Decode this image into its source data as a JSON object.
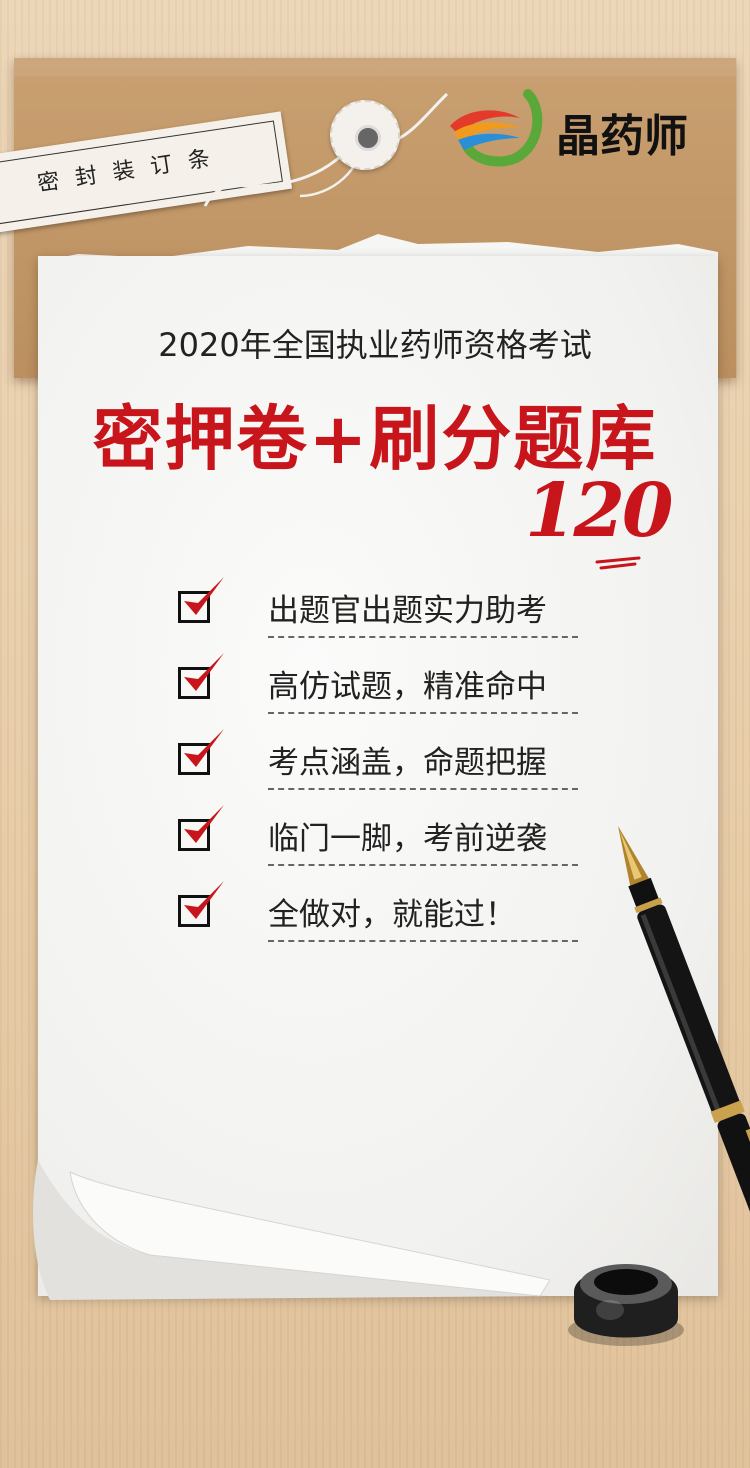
{
  "seal_strip": {
    "label": "密封装订条"
  },
  "brand": {
    "name": "晶药师"
  },
  "heading": {
    "subtitle": "2020年全国执业药师资格考试",
    "title": "密押卷+刷分题库",
    "number": "120"
  },
  "features": [
    {
      "label": "出题官出题实力助考",
      "checked": true
    },
    {
      "label": "高仿试题，精准命中",
      "checked": true
    },
    {
      "label": "考点涵盖，命题把握",
      "checked": true
    },
    {
      "label": "临门一脚，考前逆袭",
      "checked": true
    },
    {
      "label": "全做对，就能过！",
      "checked": true
    }
  ],
  "colors": {
    "accent_red": "#c8141b",
    "envelope": "#c49a6a",
    "paper": "#f4f4f2",
    "background_wood": "#e8cfae"
  },
  "icons": [
    "check-icon",
    "fountain-pen-icon",
    "inkwell-icon",
    "logo-mark-icon"
  ]
}
